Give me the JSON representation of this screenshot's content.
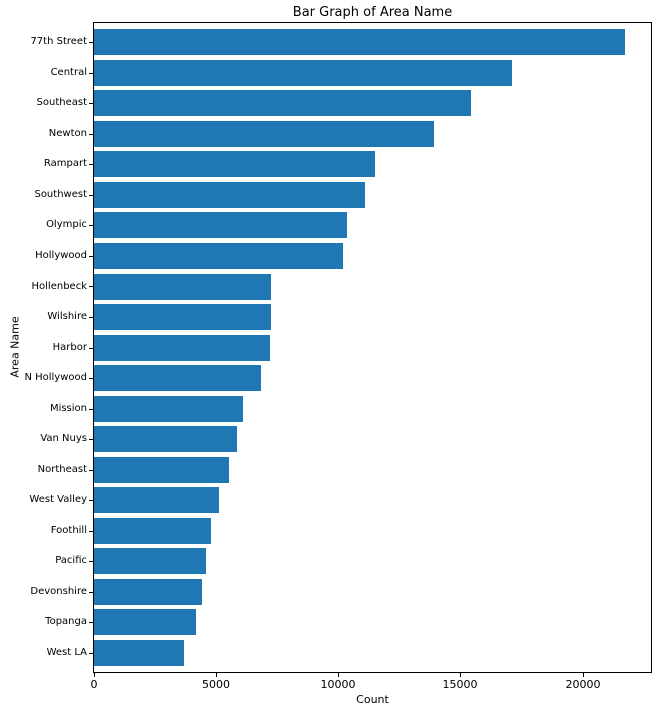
{
  "chart_data": {
    "type": "bar",
    "orientation": "horizontal",
    "title": "Bar Graph of Area Name",
    "xlabel": "Count",
    "ylabel": "Area Name",
    "categories": [
      "77th Street",
      "Central",
      "Southeast",
      "Newton",
      "Rampart",
      "Southwest",
      "Olympic",
      "Hollywood",
      "Hollenbeck",
      "Wilshire",
      "Harbor",
      "N Hollywood",
      "Mission",
      "Van Nuys",
      "Northeast",
      "West Valley",
      "Foothill",
      "Pacific",
      "Devonshire",
      "Topanga",
      "West LA"
    ],
    "values": [
      21700,
      17100,
      15400,
      13900,
      11500,
      11080,
      10350,
      10180,
      7250,
      7240,
      7210,
      6840,
      6070,
      5830,
      5500,
      5090,
      4770,
      4560,
      4400,
      4160,
      3670
    ],
    "xlim": [
      0,
      22770
    ],
    "xticks": [
      0,
      5000,
      10000,
      15000,
      20000
    ],
    "xtick_labels": [
      "0",
      "5000",
      "10000",
      "15000",
      "20000"
    ],
    "bar_color": "#1f77b4",
    "grid": false,
    "legend": null
  }
}
